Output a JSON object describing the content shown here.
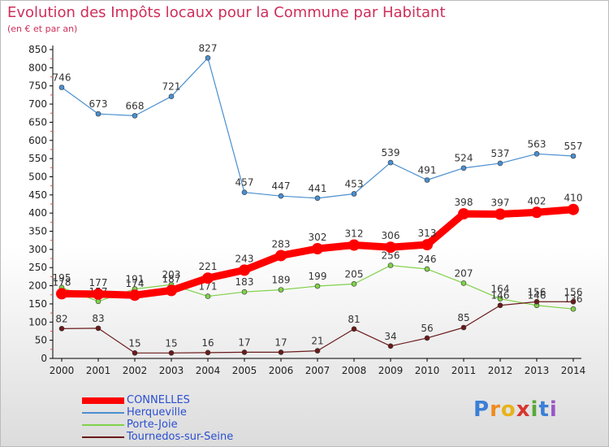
{
  "title": "Evolution des Impôts locaux pour la Commune par Habitant",
  "subtitle": "(en € et par an)",
  "brand": {
    "name": "Proxiti",
    "letters": [
      "P",
      "r",
      "o",
      "x",
      "i",
      "t",
      "i"
    ]
  },
  "chart_data": {
    "type": "line",
    "x": [
      "2000",
      "2001",
      "2002",
      "2003",
      "2004",
      "2005",
      "2006",
      "2007",
      "2008",
      "2009",
      "2010",
      "2011",
      "2012",
      "2013",
      "2014"
    ],
    "ylim": [
      0,
      850
    ],
    "yticks": [
      0,
      50,
      100,
      150,
      200,
      250,
      300,
      350,
      400,
      450,
      500,
      550,
      600,
      650,
      700,
      750,
      800,
      850
    ],
    "grid": false,
    "legend_position": "bottom-left",
    "series": [
      {
        "name": "CONNELLES",
        "color": "#ff0000",
        "emphasis": true,
        "values": [
          178,
          177,
          174,
          187,
          221,
          243,
          283,
          302,
          312,
          306,
          313,
          398,
          397,
          402,
          410
        ],
        "labels": [
          "178",
          "177",
          "174",
          "187",
          "221",
          "243",
          "283",
          "302",
          "312",
          "306",
          "313",
          "398",
          "397",
          "402",
          "410"
        ]
      },
      {
        "name": "Herqueville",
        "color": "#4a8fd0",
        "values": [
          746,
          673,
          668,
          721,
          827,
          457,
          447,
          441,
          453,
          539,
          491,
          524,
          537,
          563,
          557
        ],
        "labels": [
          "746",
          "673",
          "668",
          "721",
          "827",
          "457",
          "447",
          "441",
          "453",
          "539",
          "491",
          "524",
          "537",
          "563",
          "557"
        ]
      },
      {
        "name": "Porte-Joie",
        "color": "#7fd14a",
        "values": [
          195,
          157,
          191,
          203,
          171,
          183,
          189,
          199,
          205,
          256,
          246,
          207,
          164,
          146,
          136
        ],
        "labels": [
          "195",
          "157",
          "191",
          "203",
          "171",
          "183",
          "189",
          "199",
          "205",
          "256",
          "246",
          "207",
          "164",
          "146",
          "136"
        ]
      },
      {
        "name": "Tournedos-sur-Seine",
        "color": "#6b1a1a",
        "values": [
          82,
          83,
          15,
          15,
          16,
          17,
          17,
          21,
          81,
          34,
          56,
          85,
          146,
          156,
          156
        ],
        "labels": [
          "82",
          "83",
          "15",
          "15",
          "16",
          "17",
          "17",
          "21",
          "81",
          "34",
          "56",
          "85",
          "146",
          "156",
          "156"
        ]
      }
    ]
  }
}
